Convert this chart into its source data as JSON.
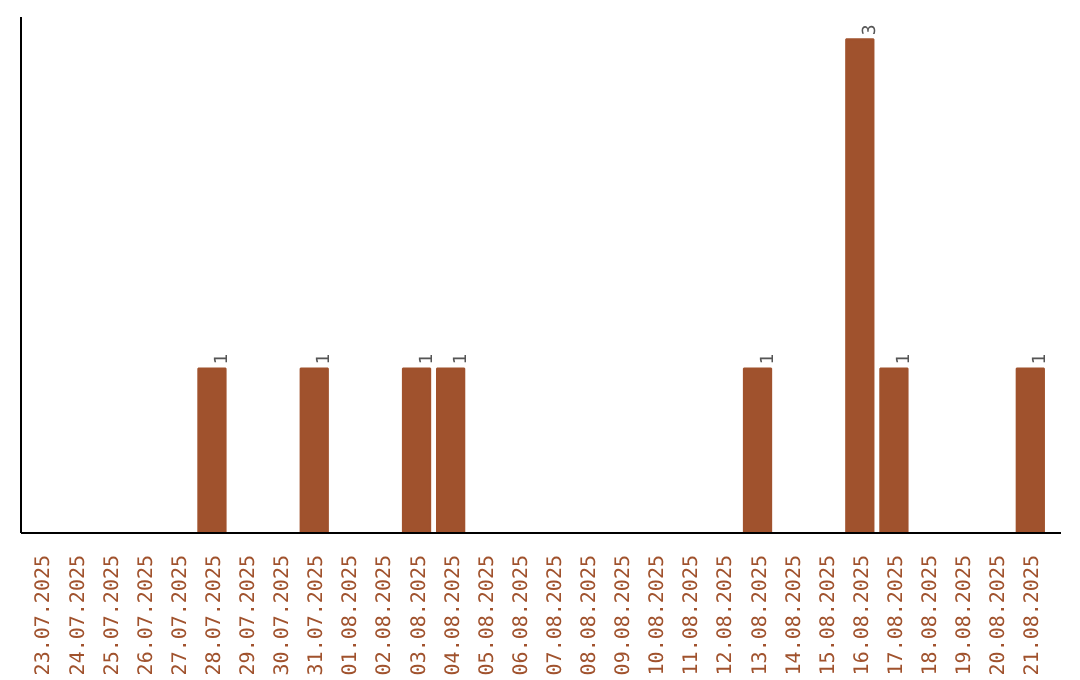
{
  "chart_data": {
    "type": "bar",
    "categories": [
      "23.07.2025",
      "24.07.2025",
      "25.07.2025",
      "26.07.2025",
      "27.07.2025",
      "28.07.2025",
      "29.07.2025",
      "30.07.2025",
      "31.07.2025",
      "01.08.2025",
      "02.08.2025",
      "03.08.2025",
      "04.08.2025",
      "05.08.2025",
      "06.08.2025",
      "07.08.2025",
      "08.08.2025",
      "09.08.2025",
      "10.08.2025",
      "11.08.2025",
      "12.08.2025",
      "13.08.2025",
      "14.08.2025",
      "15.08.2025",
      "16.08.2025",
      "17.08.2025",
      "18.08.2025",
      "19.08.2025",
      "20.08.2025",
      "21.08.2025"
    ],
    "values": [
      0,
      0,
      0,
      0,
      0,
      1,
      0,
      0,
      1,
      0,
      0,
      1,
      1,
      0,
      0,
      0,
      0,
      0,
      0,
      0,
      0,
      1,
      0,
      0,
      3,
      1,
      0,
      0,
      0,
      1
    ],
    "value_labels": [
      null,
      null,
      null,
      null,
      null,
      "1",
      null,
      null,
      "1",
      null,
      null,
      "1",
      "1",
      null,
      null,
      null,
      null,
      null,
      null,
      null,
      null,
      "1",
      null,
      null,
      "3",
      "1",
      null,
      null,
      null,
      "1"
    ],
    "color": "#a0522d"
  }
}
